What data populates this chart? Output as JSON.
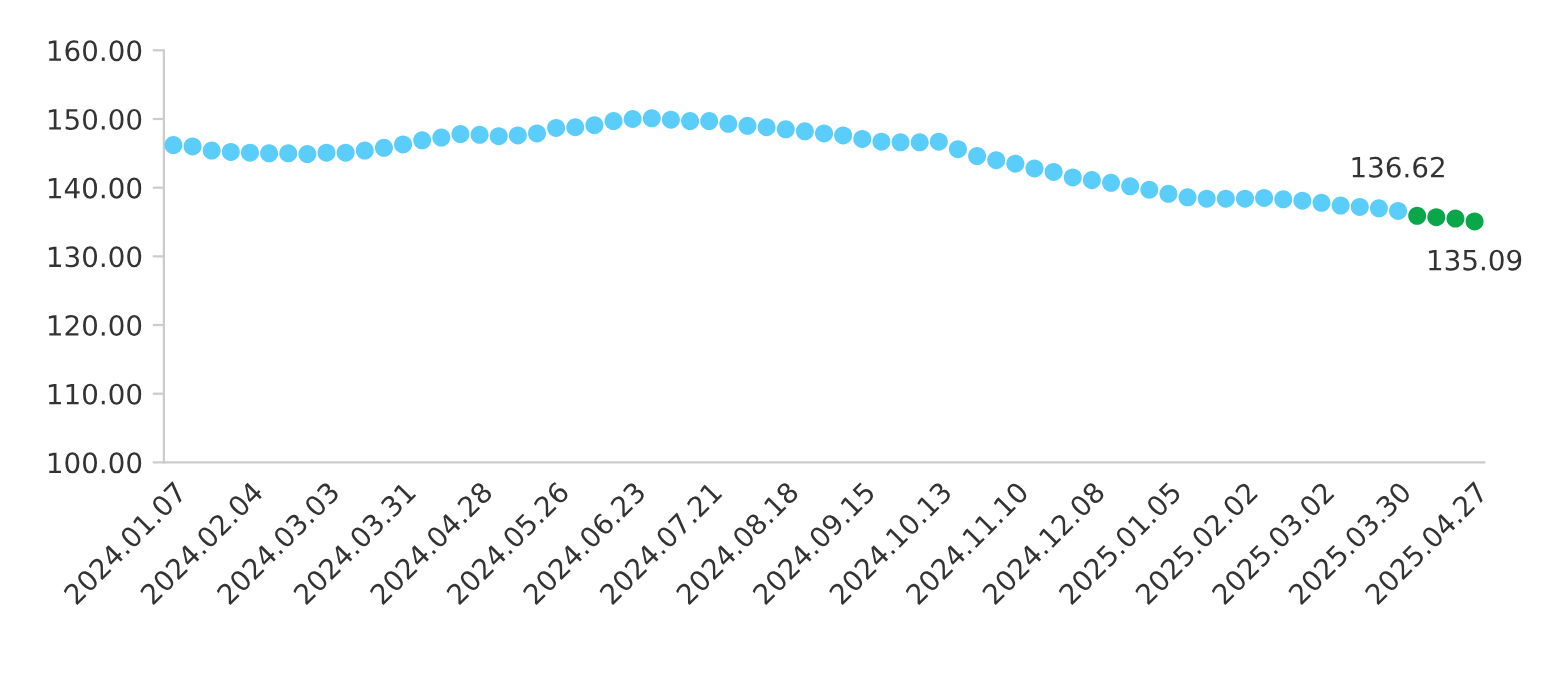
{
  "chart_data": {
    "type": "scatter",
    "marker": "circle",
    "grid": false,
    "categories": [
      "2024.01.07",
      null,
      null,
      null,
      "2024.02.04",
      null,
      null,
      null,
      "2024.03.03",
      null,
      null,
      null,
      "2024.03.31",
      null,
      null,
      null,
      "2024.04.28",
      null,
      null,
      null,
      "2024.05.26",
      null,
      null,
      null,
      "2024.06.23",
      null,
      null,
      null,
      "2024.07.21",
      null,
      null,
      null,
      "2024.08.18",
      null,
      null,
      null,
      "2024.09.15",
      null,
      null,
      null,
      "2024.10.13",
      null,
      null,
      null,
      "2024.11.10",
      null,
      null,
      null,
      "2024.12.08",
      null,
      null,
      null,
      "2025.01.05",
      null,
      null,
      null,
      "2025.02.02",
      null,
      null,
      null,
      "2025.03.02",
      null,
      null,
      null,
      "2025.03.30",
      null,
      null,
      null,
      "2025.04.27"
    ],
    "series": [
      {
        "color": "#5bcdfa",
        "values": [
          146.2,
          146.0,
          145.4,
          145.2,
          145.1,
          145.0,
          145.0,
          144.9,
          145.1,
          145.1,
          145.4,
          145.8,
          146.3,
          146.9,
          147.3,
          147.8,
          147.7,
          147.5,
          147.6,
          147.9,
          148.7,
          148.8,
          149.1,
          149.7,
          150.0,
          150.1,
          149.9,
          149.7,
          149.7,
          149.3,
          149.0,
          148.8,
          148.5,
          148.2,
          147.9,
          147.6,
          147.1,
          146.7,
          146.6,
          146.6,
          146.7,
          145.6,
          144.6,
          144.0,
          143.5,
          142.8,
          142.3,
          141.5,
          141.1,
          140.7,
          140.2,
          139.7,
          139.1,
          138.6,
          138.4,
          138.4,
          138.4,
          138.5,
          138.3,
          138.1,
          137.8,
          137.4,
          137.2,
          137.0,
          136.62,
          null,
          null,
          null,
          null
        ]
      },
      {
        "color": "#0aa64a",
        "values": [
          null,
          null,
          null,
          null,
          null,
          null,
          null,
          null,
          null,
          null,
          null,
          null,
          null,
          null,
          null,
          null,
          null,
          null,
          null,
          null,
          null,
          null,
          null,
          null,
          null,
          null,
          null,
          null,
          null,
          null,
          null,
          null,
          null,
          null,
          null,
          null,
          null,
          null,
          null,
          null,
          null,
          null,
          null,
          null,
          null,
          null,
          null,
          null,
          null,
          null,
          null,
          null,
          null,
          null,
          null,
          null,
          null,
          null,
          null,
          null,
          null,
          null,
          null,
          null,
          null,
          135.9,
          135.7,
          135.5,
          135.09
        ]
      }
    ],
    "ylim": [
      100,
      160
    ],
    "yticks": [
      {
        "value": 100,
        "label": "100.00"
      },
      {
        "value": 110,
        "label": "110.00"
      },
      {
        "value": 120,
        "label": "120.00"
      },
      {
        "value": 130,
        "label": "130.00"
      },
      {
        "value": 140,
        "label": "140.00"
      },
      {
        "value": 150,
        "label": "150.00"
      },
      {
        "value": 160,
        "label": "160.00"
      }
    ],
    "annotations": [
      {
        "text": "136.62",
        "x": "2025.03.30",
        "y": 136.62
      },
      {
        "text": "135.09",
        "x": "2025.04.27",
        "y": 135.09
      }
    ]
  }
}
